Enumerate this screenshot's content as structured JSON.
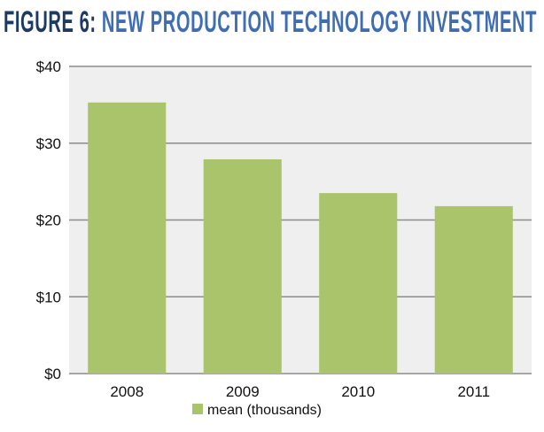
{
  "title": {
    "prefix": "FIGURE 6:",
    "main": "NEW PRODUCTION TECHNOLOGY INVESTMENT",
    "prefix_color": "#1d3a63",
    "main_color": "#3f6db3"
  },
  "colors": {
    "bar": "#a9c46b",
    "plot_background": "#efefef",
    "gridline": "#8c8c8c"
  },
  "chart_data": {
    "type": "bar",
    "categories": [
      "2008",
      "2009",
      "2010",
      "2011"
    ],
    "series": [
      {
        "name": "mean (thousands)",
        "values": [
          35.3,
          27.9,
          23.5,
          21.8
        ]
      }
    ],
    "ylim": [
      0,
      40
    ],
    "yticks": [
      0,
      10,
      20,
      30,
      40
    ],
    "ytick_labels": [
      "$0",
      "$10",
      "$20",
      "$30",
      "$40"
    ],
    "grid": true,
    "legend_position": "bottom"
  }
}
